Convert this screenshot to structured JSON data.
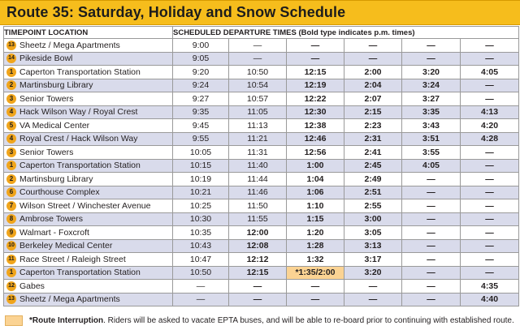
{
  "title": "Route 35:  Saturday, Holiday and Snow Schedule",
  "headers": {
    "timepoint": "TIMEPOINT LOCATION",
    "times": "SCHEDULED DEPARTURE TIMES",
    "note": "(Bold type indicates p.m. times)"
  },
  "rows": [
    {
      "num": "13",
      "loc": "Sheetz / Mega Apartments",
      "t": [
        "9:00",
        "—",
        "—",
        "—",
        "—",
        "—"
      ],
      "bold": [
        false,
        false,
        true,
        true,
        true,
        true
      ]
    },
    {
      "num": "14",
      "loc": "Pikeside Bowl",
      "t": [
        "9:05",
        "—",
        "—",
        "—",
        "—",
        "—"
      ],
      "bold": [
        false,
        false,
        true,
        true,
        true,
        true
      ]
    },
    {
      "num": "1",
      "loc": "Caperton Transportation Station",
      "t": [
        "9:20",
        "10:50",
        "12:15",
        "2:00",
        "3:20",
        "4:05"
      ],
      "bold": [
        false,
        false,
        true,
        true,
        true,
        true
      ],
      "station": true
    },
    {
      "num": "2",
      "loc": "Martinsburg Library",
      "t": [
        "9:24",
        "10:54",
        "12:19",
        "2:04",
        "3:24",
        "—"
      ],
      "bold": [
        false,
        false,
        true,
        true,
        true,
        true
      ]
    },
    {
      "num": "3",
      "loc": "Senior Towers",
      "t": [
        "9:27",
        "10:57",
        "12:22",
        "2:07",
        "3:27",
        "—"
      ],
      "bold": [
        false,
        false,
        true,
        true,
        true,
        true
      ]
    },
    {
      "num": "4",
      "loc": "Hack Wilson Way / Royal Crest",
      "t": [
        "9:35",
        "11:05",
        "12:30",
        "2:15",
        "3:35",
        "4:13"
      ],
      "bold": [
        false,
        false,
        true,
        true,
        true,
        true
      ]
    },
    {
      "num": "5",
      "loc": "VA Medical Center",
      "t": [
        "9:45",
        "11:13",
        "12:38",
        "2:23",
        "3:43",
        "4:20"
      ],
      "bold": [
        false,
        false,
        true,
        true,
        true,
        true
      ]
    },
    {
      "num": "4",
      "loc": "Royal Crest / Hack Wilson Way",
      "t": [
        "9:55",
        "11:21",
        "12:46",
        "2:31",
        "3:51",
        "4:28"
      ],
      "bold": [
        false,
        false,
        true,
        true,
        true,
        true
      ]
    },
    {
      "num": "3",
      "loc": "Senior Towers",
      "t": [
        "10:05",
        "11:31",
        "12:56",
        "2:41",
        "3:55",
        "—"
      ],
      "bold": [
        false,
        false,
        true,
        true,
        true,
        true
      ]
    },
    {
      "num": "1",
      "loc": "Caperton Transportation Station",
      "t": [
        "10:15",
        "11:40",
        "1:00",
        "2:45",
        "4:05",
        "—"
      ],
      "bold": [
        false,
        false,
        true,
        true,
        true,
        true
      ],
      "station": true
    },
    {
      "num": "2",
      "loc": "Martinsburg Library",
      "t": [
        "10:19",
        "11:44",
        "1:04",
        "2:49",
        "—",
        "—"
      ],
      "bold": [
        false,
        false,
        true,
        true,
        true,
        true
      ]
    },
    {
      "num": "6",
      "loc": "Courthouse Complex",
      "t": [
        "10:21",
        "11:46",
        "1:06",
        "2:51",
        "—",
        "—"
      ],
      "bold": [
        false,
        false,
        true,
        true,
        true,
        true
      ]
    },
    {
      "num": "7",
      "loc": "Wilson Street / Winchester Avenue",
      "t": [
        "10:25",
        "11:50",
        "1:10",
        "2:55",
        "—",
        "—"
      ],
      "bold": [
        false,
        false,
        true,
        true,
        true,
        true
      ]
    },
    {
      "num": "8",
      "loc": "Ambrose Towers",
      "t": [
        "10:30",
        "11:55",
        "1:15",
        "3:00",
        "—",
        "—"
      ],
      "bold": [
        false,
        false,
        true,
        true,
        true,
        true
      ]
    },
    {
      "num": "9",
      "loc": "Walmart -  Foxcroft",
      "t": [
        "10:35",
        "12:00",
        "1:20",
        "3:05",
        "—",
        "—"
      ],
      "bold": [
        false,
        true,
        true,
        true,
        true,
        true
      ]
    },
    {
      "num": "10",
      "loc": "Berkeley Medical Center",
      "t": [
        "10:43",
        "12:08",
        "1:28",
        "3:13",
        "—",
        "—"
      ],
      "bold": [
        false,
        true,
        true,
        true,
        true,
        true
      ]
    },
    {
      "num": "11",
      "loc": "Race Street / Raleigh Street",
      "t": [
        "10:47",
        "12:12",
        "1:32",
        "3:17",
        "—",
        "—"
      ],
      "bold": [
        false,
        true,
        true,
        true,
        true,
        true
      ]
    },
    {
      "num": "1",
      "loc": "Caperton Transportation Station",
      "t": [
        "10:50",
        "12:15",
        "*1:35/2:00",
        "3:20",
        "—",
        "—"
      ],
      "bold": [
        false,
        true,
        true,
        true,
        true,
        true
      ],
      "station": true,
      "interrupt": 2
    },
    {
      "num": "12",
      "loc": "Gabes",
      "t": [
        "—",
        "—",
        "—",
        "—",
        "—",
        "4:35"
      ],
      "bold": [
        false,
        true,
        true,
        true,
        true,
        true
      ]
    },
    {
      "num": "13",
      "loc": "Sheetz / Mega Apartments",
      "t": [
        "—",
        "—",
        "—",
        "—",
        "—",
        "4:40"
      ],
      "bold": [
        false,
        true,
        true,
        true,
        true,
        true
      ]
    }
  ],
  "legend": {
    "bold": "*Route Interruption",
    "rest": ". Riders will be asked to vacate EPTA buses, and will be able to re-board prior to continuing with established route."
  },
  "colors": {
    "title_bg": "#f6bd1c",
    "badge": "#f0a51c",
    "row_shade": "#d9dbeb",
    "interruption": "#fbd393"
  }
}
